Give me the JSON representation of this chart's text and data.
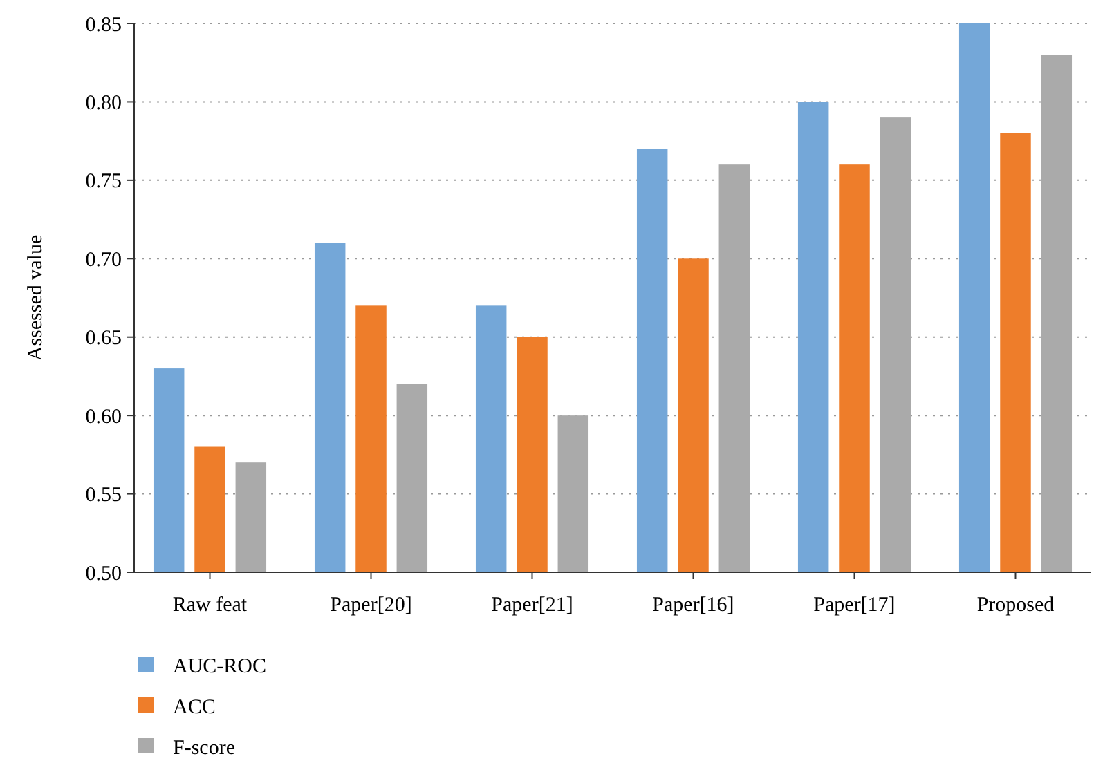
{
  "chart_data": {
    "type": "bar",
    "ylabel": "Assessed value",
    "categories": [
      "Raw feat",
      "Paper[20]",
      "Paper[21]",
      "Paper[16]",
      "Paper[17]",
      "Proposed"
    ],
    "series": [
      {
        "name": "AUC-ROC",
        "color": "#74a7d8",
        "values": [
          0.63,
          0.71,
          0.67,
          0.77,
          0.8,
          0.85
        ]
      },
      {
        "name": "ACC",
        "color": "#ee7d2a",
        "values": [
          0.58,
          0.67,
          0.65,
          0.7,
          0.76,
          0.78
        ]
      },
      {
        "name": "F-score",
        "color": "#aaaaaa",
        "values": [
          0.57,
          0.62,
          0.6,
          0.76,
          0.79,
          0.83
        ]
      }
    ],
    "ylim": [
      0.5,
      0.85
    ],
    "yticks": [
      {
        "value": 0.5,
        "label": "0.50"
      },
      {
        "value": 0.55,
        "label": "0.55"
      },
      {
        "value": 0.6,
        "label": "0.60"
      },
      {
        "value": 0.65,
        "label": "0.65"
      },
      {
        "value": 0.7,
        "label": "0.70"
      },
      {
        "value": 0.75,
        "label": "0.75"
      },
      {
        "value": 0.8,
        "label": "0.80"
      },
      {
        "value": 0.85,
        "label": "0.85"
      }
    ],
    "grid": "y",
    "legend": "bottom"
  }
}
